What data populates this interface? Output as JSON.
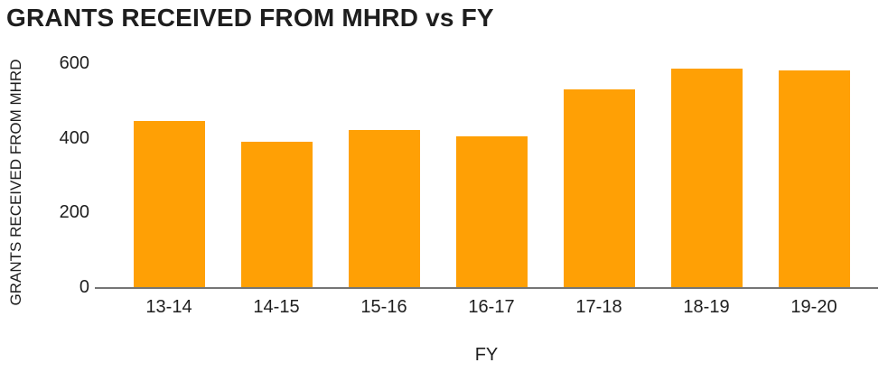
{
  "chart_data": {
    "type": "bar",
    "title": "GRANTS RECEIVED FROM MHRD vs FY",
    "xlabel": "FY",
    "ylabel": "GRANTS RECEIVED FROM MHRD",
    "categories": [
      "13-14",
      "14-15",
      "15-16",
      "16-17",
      "17-18",
      "18-19",
      "19-20"
    ],
    "values": [
      445,
      390,
      420,
      405,
      530,
      585,
      580
    ],
    "ylim": [
      0,
      600
    ],
    "yticks": [
      0,
      200,
      400,
      600
    ],
    "grid": false,
    "legend": false,
    "bar_color": "#FFA005",
    "axis_color": "#757575",
    "text_color": "#1E1E1E",
    "background_color": "#FFFFFF"
  }
}
